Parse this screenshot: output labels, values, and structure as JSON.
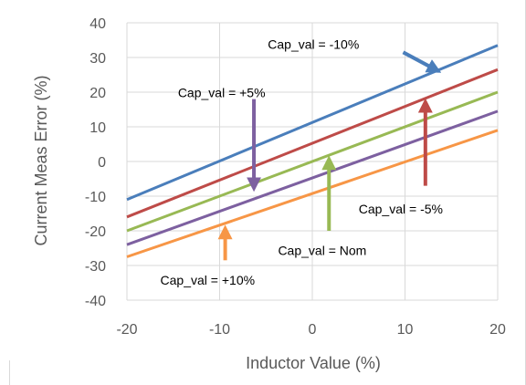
{
  "chart_data": {
    "type": "line",
    "title": "",
    "xlabel": "Inductor Value (%)",
    "ylabel": "Current  Meas Error (%)",
    "xlim": [
      -20,
      20
    ],
    "ylim": [
      -40,
      40
    ],
    "xticks": [
      -20,
      -10,
      0,
      10,
      20
    ],
    "yticks": [
      -40,
      -30,
      -20,
      -10,
      0,
      10,
      20,
      30,
      40
    ],
    "grid": true,
    "series": [
      {
        "color": "#4a7ebb",
        "x": [
          -20,
          20
        ],
        "values": [
          -11,
          33.5
        ]
      },
      {
        "color": "#be4b48",
        "x": [
          -20,
          20
        ],
        "values": [
          -16,
          26.5
        ]
      },
      {
        "color": "#98b954",
        "x": [
          -20,
          20
        ],
        "values": [
          -20,
          20
        ]
      },
      {
        "color": "#7d60a0",
        "x": [
          -20,
          20
        ],
        "values": [
          -24,
          14.5
        ]
      },
      {
        "color": "#f79646",
        "x": [
          -20,
          20
        ],
        "values": [
          -27.5,
          9
        ]
      }
    ],
    "annotations": [
      {
        "text": "Cap_val = -10%",
        "color": "#4a7ebb",
        "tx": -4.8,
        "ty": 32.5,
        "arrow": {
          "x1": 9.8,
          "y1": 31.5,
          "x2": 13.5,
          "y2": 26.2
        }
      },
      {
        "text": "Cap_val = +5%",
        "color": "#7d60a0",
        "tx": -14.5,
        "ty": 18.5,
        "arrow": {
          "x1": -6.3,
          "y1": 18.0,
          "x2": -6.3,
          "y2": -7.5
        }
      },
      {
        "text": "Cap_val = -5%",
        "color": "#be4b48",
        "tx": 5.0,
        "ty": -15.0,
        "arrow": {
          "x1": 12.2,
          "y1": -7.0,
          "x2": 12.2,
          "y2": 17.0
        }
      },
      {
        "text": "Cap_val = Nom",
        "color": "#98b954",
        "tx": -3.7,
        "ty": -27.0,
        "arrow": {
          "x1": 1.8,
          "y1": -20.0,
          "x2": 1.8,
          "y2": 0.5
        }
      },
      {
        "text": "Cap_val = +10%",
        "color": "#f79646",
        "tx": -16.4,
        "ty": -35.5,
        "arrow": {
          "x1": -9.4,
          "y1": -28.5,
          "x2": -9.4,
          "y2": -19.5
        }
      }
    ]
  }
}
